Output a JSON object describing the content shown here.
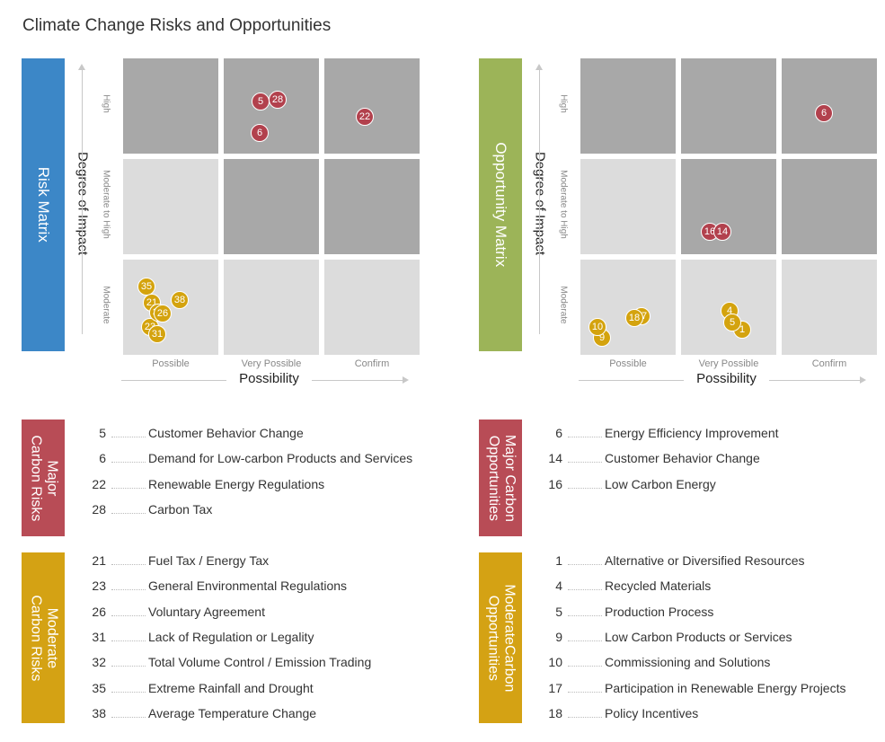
{
  "page_title": "Climate Change Risks and Opportunities",
  "colors": {
    "blue": "#3c87c7",
    "green": "#9cb458",
    "red": "#b84c56",
    "gold": "#d4a214",
    "cell_dark": "#a8a8a8",
    "cell_light": "#dcdcdc",
    "dot_red": "#b2414d",
    "dot_gold": "#d4a30e"
  },
  "risk_matrix": {
    "label": "Risk Matrix",
    "y_axis_title": "Degree of Impact",
    "x_axis_title": "Possibility",
    "y_levels": [
      "High",
      "Moderate to High",
      "Moderate"
    ],
    "x_levels": [
      "Possible",
      "Very Possible",
      "Confirm"
    ],
    "cell_shades": [
      [
        "dark",
        "dark",
        "dark"
      ],
      [
        "light",
        "dark",
        "dark"
      ],
      [
        "light",
        "light",
        "light"
      ]
    ],
    "points": [
      {
        "label": "5",
        "color": "red",
        "col": "Very Possible",
        "row": "High"
      },
      {
        "label": "28",
        "color": "red",
        "col": "Very Possible",
        "row": "High"
      },
      {
        "label": "6",
        "color": "red",
        "col": "Very Possible",
        "row": "High"
      },
      {
        "label": "22",
        "color": "red",
        "col": "Confirm",
        "row": "High"
      },
      {
        "label": "35",
        "color": "gold",
        "col": "Possible",
        "row": "Moderate"
      },
      {
        "label": "38",
        "color": "gold",
        "col": "Possible",
        "row": "Moderate"
      },
      {
        "label": "21",
        "color": "gold",
        "col": "Possible",
        "row": "Moderate"
      },
      {
        "label": "23",
        "color": "gold",
        "col": "Possible",
        "row": "Moderate"
      },
      {
        "label": "32",
        "color": "gold",
        "col": "Possible",
        "row": "Moderate"
      },
      {
        "label": "26",
        "color": "gold",
        "col": "Possible",
        "row": "Moderate"
      },
      {
        "label": "31",
        "color": "gold",
        "col": "Possible",
        "row": "Moderate"
      }
    ]
  },
  "opportunity_matrix": {
    "label": "Opportunity Matrix",
    "y_axis_title": "Degree of Impact",
    "x_axis_title": "Possibility",
    "y_levels": [
      "High",
      "Moderate to High",
      "Moderate"
    ],
    "x_levels": [
      "Possible",
      "Very Possible",
      "Confirm"
    ],
    "cell_shades": [
      [
        "dark",
        "dark",
        "dark"
      ],
      [
        "light",
        "dark",
        "dark"
      ],
      [
        "light",
        "light",
        "light"
      ]
    ],
    "points": [
      {
        "label": "6",
        "color": "red",
        "col": "Confirm",
        "row": "High"
      },
      {
        "label": "16",
        "color": "red",
        "col": "Very Possible",
        "row": "Moderate to High"
      },
      {
        "label": "14",
        "color": "red",
        "col": "Very Possible",
        "row": "Moderate to High"
      },
      {
        "label": "9",
        "color": "gold",
        "col": "Possible",
        "row": "Moderate"
      },
      {
        "label": "10",
        "color": "gold",
        "col": "Possible",
        "row": "Moderate"
      },
      {
        "label": "17",
        "color": "gold",
        "col": "Possible",
        "row": "Moderate"
      },
      {
        "label": "18",
        "color": "gold",
        "col": "Possible",
        "row": "Moderate"
      },
      {
        "label": "4",
        "color": "gold",
        "col": "Very Possible",
        "row": "Moderate"
      },
      {
        "label": "1",
        "color": "gold",
        "col": "Very Possible",
        "row": "Moderate"
      },
      {
        "label": "5",
        "color": "gold",
        "col": "Very Possible",
        "row": "Moderate"
      }
    ]
  },
  "legends": {
    "major_risks": {
      "label_lines": [
        "Major",
        "Carbon Risks"
      ],
      "items": [
        {
          "num": "5",
          "text": "Customer Behavior Change"
        },
        {
          "num": "6",
          "text": "Demand for Low-carbon Products and Services"
        },
        {
          "num": "22",
          "text": "Renewable Energy Regulations"
        },
        {
          "num": "28",
          "text": "Carbon Tax"
        }
      ]
    },
    "moderate_risks": {
      "label_lines": [
        "Moderate",
        "Carbon Risks"
      ],
      "items": [
        {
          "num": "21",
          "text": "Fuel Tax / Energy Tax"
        },
        {
          "num": "23",
          "text": "General Environmental Regulations"
        },
        {
          "num": "26",
          "text": "Voluntary Agreement"
        },
        {
          "num": "31",
          "text": "Lack of Regulation or Legality"
        },
        {
          "num": "32",
          "text": "Total Volume Control / Emission Trading"
        },
        {
          "num": "35",
          "text": "Extreme Rainfall and Drought"
        },
        {
          "num": "38",
          "text": "Average Temperature Change"
        }
      ]
    },
    "major_opps": {
      "label_lines": [
        "Major Carbon",
        "Opportunities"
      ],
      "items": [
        {
          "num": "6",
          "text": "Energy Efficiency Improvement"
        },
        {
          "num": "14",
          "text": "Customer Behavior Change"
        },
        {
          "num": "16",
          "text": "Low Carbon Energy"
        }
      ]
    },
    "moderate_opps": {
      "label_lines": [
        "ModerateCarbon",
        "Opportunities"
      ],
      "items": [
        {
          "num": "1",
          "text": "Alternative or Diversified Resources"
        },
        {
          "num": "4",
          "text": "Recycled Materials"
        },
        {
          "num": "5",
          "text": "Production Process"
        },
        {
          "num": "9",
          "text": "Low Carbon Products or Services"
        },
        {
          "num": "10",
          "text": "Commissioning and Solutions"
        },
        {
          "num": "17",
          "text": "Participation in Renewable Energy Projects"
        },
        {
          "num": "18",
          "text": "Policy Incentives"
        }
      ]
    }
  }
}
